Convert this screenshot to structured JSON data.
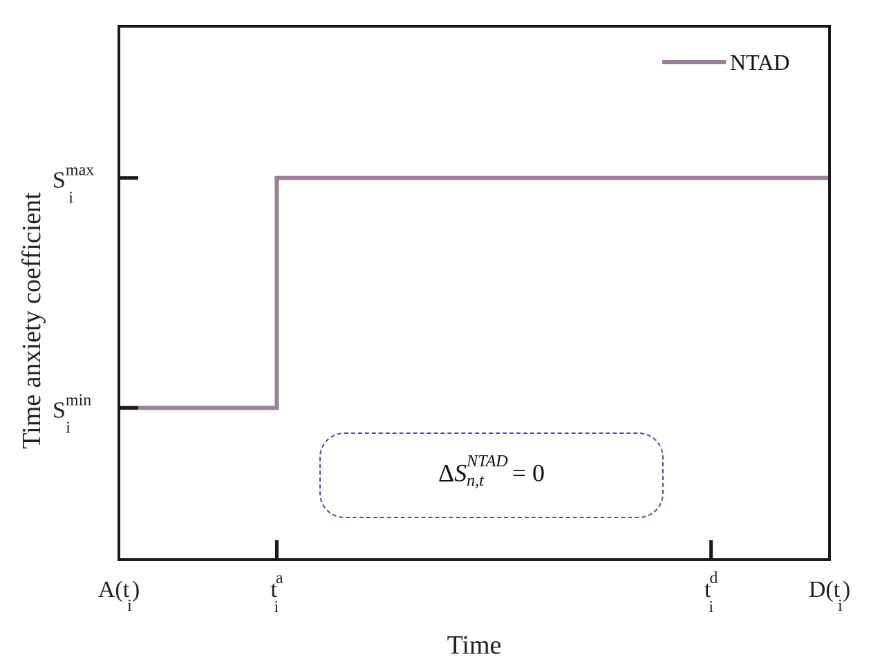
{
  "chart_data": {
    "type": "line",
    "title": "",
    "xlabel": "Time",
    "ylabel": "Time anxiety coefficient",
    "x_ticks": [
      {
        "pos": 0.0,
        "label": "A",
        "open": "(",
        "base": "t",
        "sub": "i",
        "close": ")"
      },
      {
        "pos": 0.2222,
        "base": "t",
        "sup": "a",
        "sub": "i"
      },
      {
        "pos": 0.8333,
        "base": "t",
        "sup": "d",
        "sub": "i"
      },
      {
        "pos": 1.0,
        "label": "D",
        "open": "(",
        "base": "t",
        "sub": "i",
        "close": ")"
      }
    ],
    "y_ticks": [
      {
        "pos": 0.0,
        "base": "S",
        "sup": "min",
        "sub": "i"
      },
      {
        "pos": 1.0,
        "base": "S",
        "sup": "max",
        "sub": "i"
      }
    ],
    "xlim": [
      0,
      1
    ],
    "ylim": [
      -0.66,
      1.66
    ],
    "grid": false,
    "legend": {
      "position": "top-right"
    },
    "series": [
      {
        "name": "NTAD",
        "color": "#9a8098",
        "step": true,
        "x": [
          0.0,
          0.2222,
          0.2222,
          1.0
        ],
        "y": [
          0.0,
          0.0,
          1.0,
          1.0
        ]
      }
    ],
    "annotation": {
      "delta": "Δ",
      "symbol": "S",
      "sup": "NTAD",
      "sub": "n,t",
      "rhs": "= 0",
      "border_color": "#4b44c8"
    }
  }
}
